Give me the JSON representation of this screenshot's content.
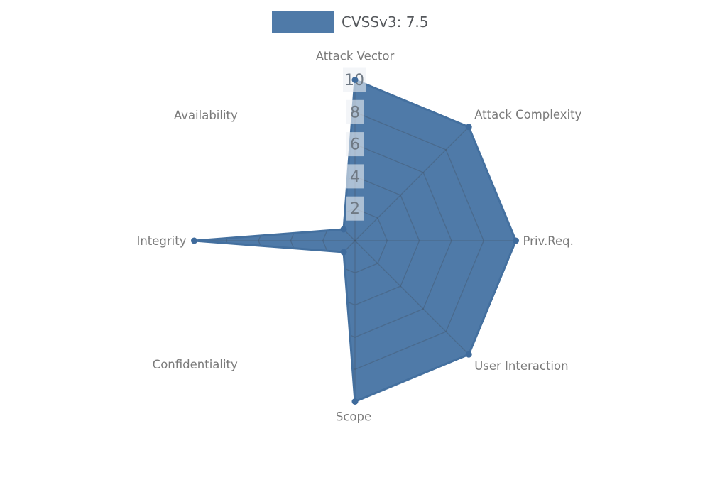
{
  "legend": {
    "label": "CVSSv3: 7.5"
  },
  "chart_data": {
    "type": "radar",
    "title": "CVSSv3: 7.5",
    "categories": [
      "Attack Vector",
      "Attack Complexity",
      "Priv.Req.",
      "User Interaction",
      "Scope",
      "Confidentiality",
      "Integrity",
      "Availability"
    ],
    "series": [
      {
        "name": "CVSSv3: 7.5",
        "values": [
          10,
          10,
          10,
          10,
          10,
          1,
          10,
          1
        ]
      }
    ],
    "rmax": 10,
    "rticks": [
      2,
      4,
      6,
      8,
      10
    ],
    "grid": true,
    "grid_clipped_to_polygon": true,
    "legend_position": "top-center",
    "colors": {
      "fill": "#4F7AA8",
      "stroke": "#44709F",
      "marker": "#3F6B9C",
      "grid": "rgba(60,60,60,0.25)",
      "tick_text": "#6F7984",
      "tick_box": "rgba(235,239,244,0.6)",
      "axis_label": "#7A7A7A",
      "legend_text": "#55585C"
    }
  }
}
